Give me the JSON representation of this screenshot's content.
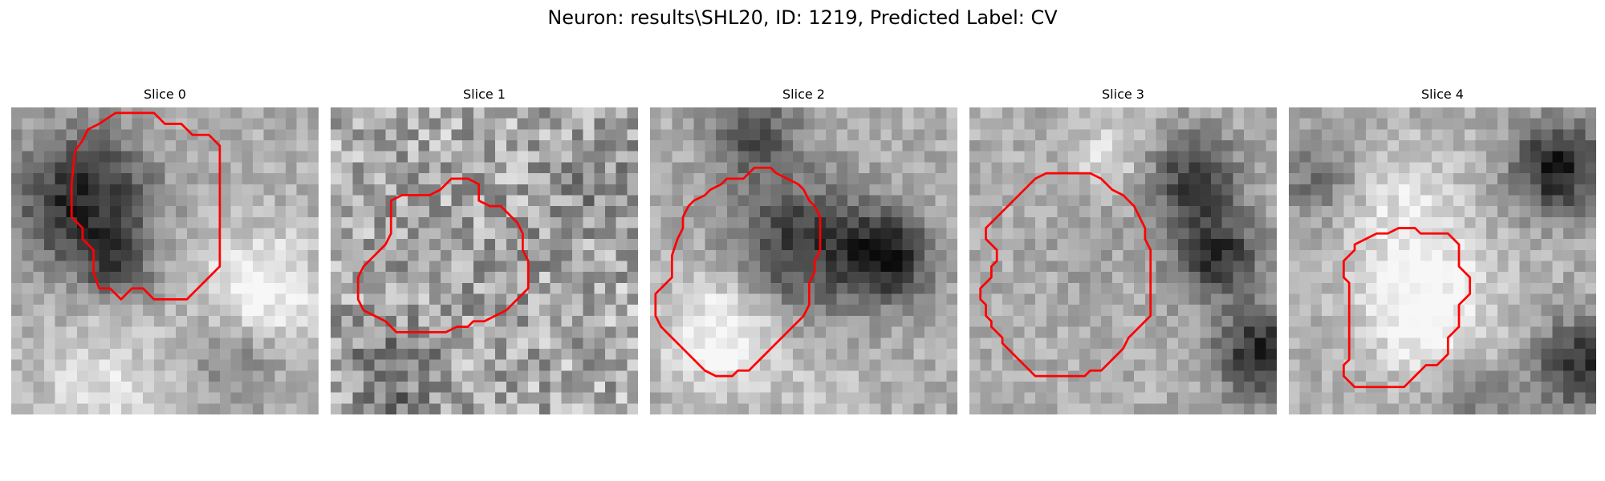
{
  "figure": {
    "title": "Neuron: results\\SHL20, ID: 1219, Predicted Label: CV"
  },
  "panels": [
    {
      "title": "Slice 0",
      "contour": [
        [
          9.5,
          0.5
        ],
        [
          13,
          0.5
        ],
        [
          14,
          1.5
        ],
        [
          15.5,
          1.5
        ],
        [
          16.5,
          2.5
        ],
        [
          18,
          2.5
        ],
        [
          19,
          3.5
        ],
        [
          19,
          14.5
        ],
        [
          18,
          15.5
        ],
        [
          17,
          16.5
        ],
        [
          16,
          17.5
        ],
        [
          13,
          17.5
        ],
        [
          12,
          16.5
        ],
        [
          11,
          16.5
        ],
        [
          10,
          17.5
        ],
        [
          9,
          16.5
        ],
        [
          8,
          16.5
        ],
        [
          7.5,
          15
        ],
        [
          7.5,
          13
        ],
        [
          6.5,
          12
        ],
        [
          6.5,
          11
        ],
        [
          5.5,
          10
        ],
        [
          5.5,
          7
        ],
        [
          5.8,
          4
        ],
        [
          6.5,
          3
        ],
        [
          7,
          2
        ],
        [
          8,
          1.5
        ]
      ]
    },
    {
      "title": "Slice 1",
      "contour": [
        [
          11,
          6.5
        ],
        [
          12.5,
          6.5
        ],
        [
          13.5,
          7
        ],
        [
          13.5,
          8.5
        ],
        [
          14.5,
          9
        ],
        [
          15.5,
          9
        ],
        [
          16.5,
          10
        ],
        [
          17,
          10.5
        ],
        [
          17.5,
          11.5
        ],
        [
          17.5,
          13
        ],
        [
          18,
          14
        ],
        [
          18,
          16.5
        ],
        [
          17,
          17.5
        ],
        [
          16,
          18.5
        ],
        [
          15,
          19
        ],
        [
          14,
          19.5
        ],
        [
          13,
          19.5
        ],
        [
          12.5,
          20
        ],
        [
          11.5,
          20
        ],
        [
          10.5,
          20.5
        ],
        [
          6,
          20.5
        ],
        [
          5,
          19.5
        ],
        [
          4,
          19
        ],
        [
          3,
          18.5
        ],
        [
          2.5,
          17.5
        ],
        [
          2.5,
          15.5
        ],
        [
          3,
          14.5
        ],
        [
          4,
          13.5
        ],
        [
          5,
          12.5
        ],
        [
          5.5,
          11.5
        ],
        [
          5.5,
          8.5
        ],
        [
          6.5,
          8
        ],
        [
          9,
          8
        ],
        [
          10,
          7.5
        ]
      ]
    },
    {
      "title": "Slice 2",
      "contour": [
        [
          9.5,
          5.5
        ],
        [
          11,
          5.5
        ],
        [
          11.5,
          6
        ],
        [
          12.5,
          6.5
        ],
        [
          13.5,
          7
        ],
        [
          14,
          7.5
        ],
        [
          14.5,
          8.5
        ],
        [
          15,
          9
        ],
        [
          15.5,
          10
        ],
        [
          15.5,
          11.5
        ],
        [
          15.5,
          13
        ],
        [
          15,
          14
        ],
        [
          15,
          15
        ],
        [
          14.5,
          16
        ],
        [
          14.5,
          18
        ],
        [
          14,
          19
        ],
        [
          13.5,
          19.5
        ],
        [
          13,
          20
        ],
        [
          12.5,
          20.5
        ],
        [
          12,
          21
        ],
        [
          11.5,
          21.5
        ],
        [
          11,
          22
        ],
        [
          10.5,
          22.5
        ],
        [
          10,
          23
        ],
        [
          9.5,
          23.5
        ],
        [
          9,
          24
        ],
        [
          8,
          24
        ],
        [
          7.5,
          24.5
        ],
        [
          6,
          24.5
        ],
        [
          5,
          24
        ],
        [
          4,
          23
        ],
        [
          3,
          22
        ],
        [
          2,
          21
        ],
        [
          1,
          20
        ],
        [
          0.5,
          19
        ],
        [
          0.5,
          17
        ],
        [
          1,
          16.5
        ],
        [
          2,
          15.5
        ],
        [
          2,
          13.5
        ],
        [
          2.5,
          12
        ],
        [
          3,
          11
        ],
        [
          3,
          10
        ],
        [
          3.5,
          9
        ],
        [
          4,
          8.5
        ],
        [
          5,
          8
        ],
        [
          5.5,
          7.5
        ],
        [
          6.5,
          7
        ],
        [
          7,
          6.5
        ],
        [
          8.5,
          6.5
        ]
      ]
    },
    {
      "title": "Slice 3",
      "contour": [
        [
          7,
          6
        ],
        [
          11,
          6
        ],
        [
          12,
          6.5
        ],
        [
          13,
          7.5
        ],
        [
          14,
          8
        ],
        [
          15,
          9
        ],
        [
          15.5,
          10
        ],
        [
          16,
          11
        ],
        [
          16,
          12
        ],
        [
          16.5,
          13
        ],
        [
          16.5,
          19
        ],
        [
          16,
          19.5
        ],
        [
          15.5,
          20
        ],
        [
          15,
          20.5
        ],
        [
          14.5,
          21
        ],
        [
          14,
          22
        ],
        [
          13,
          23
        ],
        [
          12,
          24
        ],
        [
          11,
          24
        ],
        [
          10.5,
          24.5
        ],
        [
          6,
          24.5
        ],
        [
          5.5,
          24
        ],
        [
          5,
          23.5
        ],
        [
          4.5,
          23
        ],
        [
          4,
          22.5
        ],
        [
          3.5,
          22
        ],
        [
          3,
          21.5
        ],
        [
          3,
          21
        ],
        [
          2.5,
          20.5
        ],
        [
          2,
          20
        ],
        [
          2,
          19.5
        ],
        [
          1.5,
          19
        ],
        [
          1.5,
          18
        ],
        [
          1,
          17.5
        ],
        [
          1,
          16.5
        ],
        [
          1.5,
          16
        ],
        [
          2,
          15.5
        ],
        [
          2,
          14.5
        ],
        [
          2.5,
          14
        ],
        [
          2.5,
          13
        ],
        [
          2,
          12.5
        ],
        [
          1.5,
          12
        ],
        [
          1.5,
          11
        ],
        [
          2,
          10.5
        ],
        [
          2.5,
          10
        ],
        [
          3.5,
          9
        ],
        [
          4.5,
          8
        ],
        [
          5,
          7.5
        ],
        [
          6,
          6.5
        ]
      ]
    },
    {
      "title": "Slice 4",
      "contour": [
        [
          9,
          11.5
        ],
        [
          10,
          11
        ],
        [
          11.5,
          11
        ],
        [
          12,
          11.5
        ],
        [
          14.5,
          11.5
        ],
        [
          15,
          12
        ],
        [
          15.5,
          12.5
        ],
        [
          15.5,
          14.5
        ],
        [
          16,
          15
        ],
        [
          16.5,
          15.5
        ],
        [
          16.5,
          17
        ],
        [
          16,
          17.5
        ],
        [
          15.5,
          18
        ],
        [
          15.5,
          20
        ],
        [
          15,
          20.5
        ],
        [
          14.5,
          21
        ],
        [
          14.5,
          22.5
        ],
        [
          14,
          23
        ],
        [
          13.5,
          23.5
        ],
        [
          12.5,
          23.5
        ],
        [
          12,
          24
        ],
        [
          11.5,
          24.5
        ],
        [
          11,
          25
        ],
        [
          10.5,
          25.5
        ],
        [
          6,
          25.5
        ],
        [
          5.5,
          25
        ],
        [
          5,
          24.5
        ],
        [
          5,
          23.5
        ],
        [
          5.5,
          23
        ],
        [
          5.5,
          19
        ],
        [
          5.5,
          17.5
        ],
        [
          5.5,
          16
        ],
        [
          5,
          15.5
        ],
        [
          5,
          14
        ],
        [
          5.5,
          13.5
        ],
        [
          6,
          13
        ],
        [
          6,
          12.5
        ],
        [
          7,
          12
        ],
        [
          8,
          11.5
        ]
      ]
    }
  ]
}
